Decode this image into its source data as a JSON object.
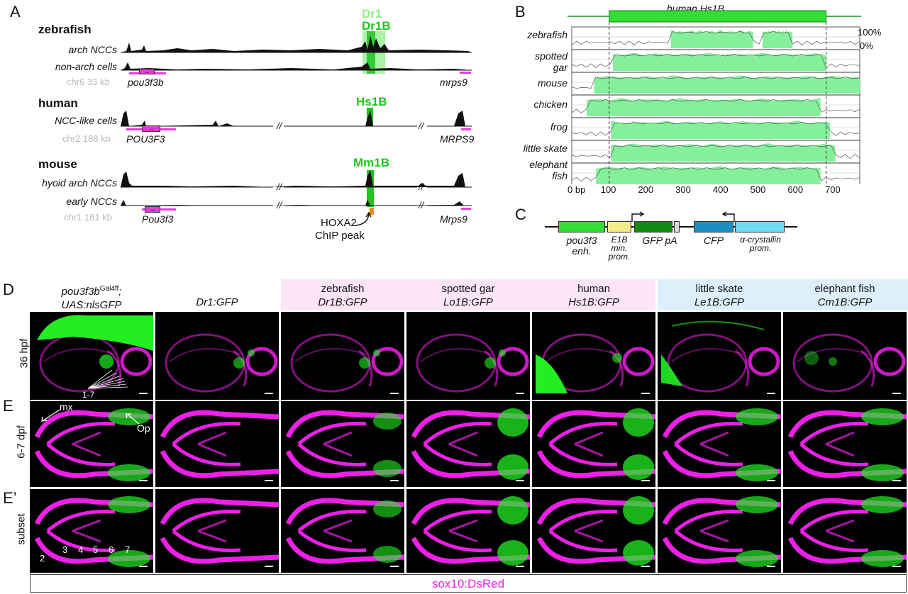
{
  "panelA": {
    "letter": "A",
    "zebrafish": {
      "species": "zebrafish",
      "peak_top": "Dr1",
      "peak_main": "Dr1B",
      "track1": "arch NCCs",
      "track2": "non-arch cells",
      "coord": "chr6 33 kb",
      "gene_left": "pou3f3b",
      "gene_right": "mrps9"
    },
    "human": {
      "species": "human",
      "peak": "Hs1B",
      "track1": "NCC-like cells",
      "coord": "chr2 188 kb",
      "gene_left": "POU3F3",
      "gene_right": "MRPS9"
    },
    "mouse": {
      "species": "mouse",
      "peak": "Mm1B",
      "track1": "hyoid arch NCCs",
      "track2": "early NCCs",
      "coord": "chr1 161 kb",
      "gene_left": "Pou3f3",
      "gene_right": "Mrps9",
      "chip_line1": "HOXA2",
      "chip_line2": "ChIP peak"
    },
    "break_mark": "//"
  },
  "panelB": {
    "letter": "B",
    "title": "human Hs1B",
    "species": [
      {
        "line1": "zebrafish",
        "line2": ""
      },
      {
        "line1": "spotted",
        "line2": "gar"
      },
      {
        "line1": "mouse",
        "line2": ""
      },
      {
        "line1": "chicken",
        "line2": ""
      },
      {
        "line1": "frog",
        "line2": ""
      },
      {
        "line1": "little skate",
        "line2": ""
      },
      {
        "line1": "elephant",
        "line2": "fish"
      }
    ],
    "y_ticks": [
      "100%",
      "0%"
    ],
    "x_ticks": [
      "0 bp",
      "100",
      "200",
      "300",
      "400",
      "500",
      "600",
      "700"
    ],
    "x_values": [
      0,
      100,
      200,
      300,
      400,
      500,
      600,
      700
    ],
    "xlim": [
      0,
      770
    ],
    "hs1b_range": [
      100,
      680
    ],
    "conserved_regions": [
      [
        [
          265,
          485
        ],
        [
          510,
          590
        ]
      ],
      [
        [
          110,
          680
        ]
      ],
      [
        [
          60,
          770
        ]
      ],
      [
        [
          40,
          665
        ]
      ],
      [
        [
          105,
          690
        ]
      ],
      [
        [
          105,
          705
        ]
      ],
      [
        [
          65,
          665
        ]
      ]
    ]
  },
  "panelC": {
    "letter": "C",
    "boxes": [
      {
        "label_line1": "pou3f3",
        "label_line2": "enh.",
        "color": "#33dd33"
      },
      {
        "label_line1": "E1B",
        "label_line2": "min. prom.",
        "color": "#f7ea8c"
      },
      {
        "label_line1": "GFP pA",
        "label_line2": "",
        "color": "#138a13"
      },
      {
        "label_line1": "CFP",
        "label_line2": "",
        "color": "#1c8ec2"
      },
      {
        "label_line1": "α-crystallin",
        "label_line2": "prom.",
        "color": "#6fd9f2"
      }
    ]
  },
  "panelD": {
    "letter": "D",
    "columns": [
      {
        "line1": "pou3f3b",
        "sup": "Gal4ff",
        "suffix": ";",
        "line2": "UAS:nlsGFP",
        "bg": "#ffffff"
      },
      {
        "line1": "",
        "sup": "",
        "suffix": "",
        "line2": "Dr1:GFP",
        "bg": "#ffffff"
      },
      {
        "line1": "zebrafish",
        "sup": "",
        "suffix": "",
        "line2": "Dr1B:GFP",
        "bg": "#fbe5f7"
      },
      {
        "line1": "spotted gar",
        "sup": "",
        "suffix": "",
        "line2": "Lo1B:GFP",
        "bg": "#fbe5f7"
      },
      {
        "line1": "human",
        "sup": "",
        "suffix": "",
        "line2": "Hs1B:GFP",
        "bg": "#fbe5f7"
      },
      {
        "line1": "little skate",
        "sup": "",
        "suffix": "",
        "line2": "Le1B:GFP",
        "bg": "#dceffa"
      },
      {
        "line1": "elephant fish",
        "sup": "",
        "suffix": "",
        "line2": "Cm1B:GFP",
        "bg": "#dceffa"
      }
    ],
    "row_label": "36 hpf",
    "annotation": "1-7"
  },
  "panelE": {
    "letter": "E",
    "row_label": "6-7 dpf",
    "mx": "mx",
    "op": "Op"
  },
  "panelE2": {
    "letter": "E’",
    "row_label": "subset",
    "numbers": [
      "2",
      "3",
      "4",
      "5",
      "6",
      "7"
    ]
  },
  "footer": {
    "text": "sox10:DsRed",
    "magenta": "#ee1fe8",
    "green": "#22ee22"
  }
}
